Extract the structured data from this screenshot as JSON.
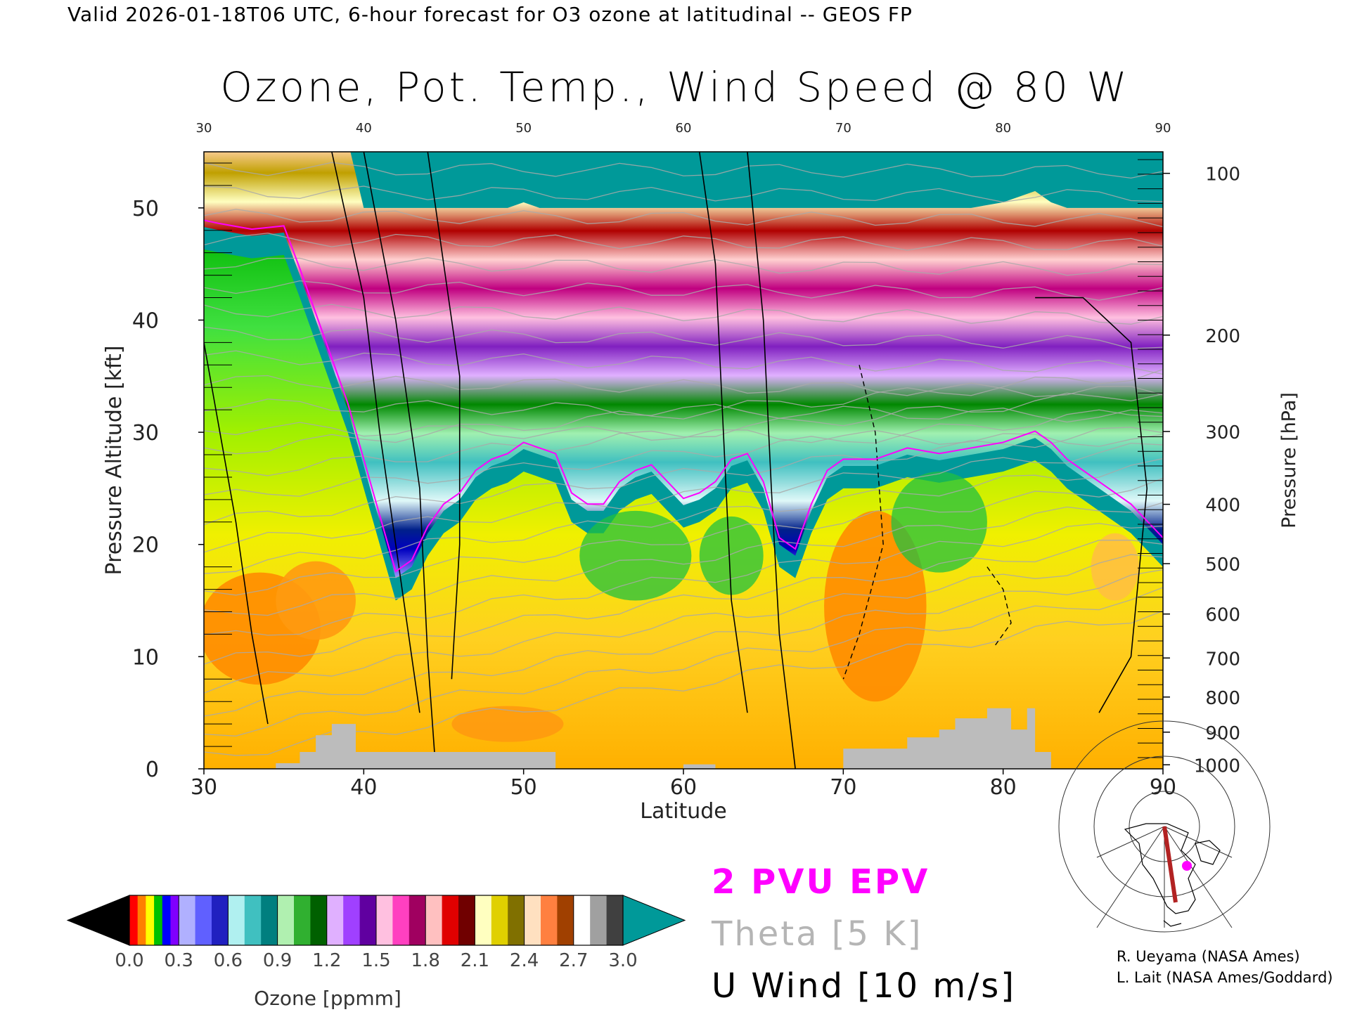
{
  "header": {
    "valid_line": "Valid 2026-01-18T06 UTC, 6-hour forecast for O3 ozone at latitudinal -- GEOS FP",
    "title": "Ozone, Pot. Temp., Wind Speed @ 80 W"
  },
  "chart_data": {
    "type": "heatmap",
    "title": "Ozone, Pot. Temp., Wind Speed @ 80 W",
    "xlabel": "Latitude",
    "ylabel": "Pressure Altitude [kft]",
    "y2label": "Pressure [hPa]",
    "xlim": [
      30,
      90
    ],
    "ylim": [
      0,
      55
    ],
    "x_ticks": [
      30,
      40,
      50,
      60,
      70,
      80,
      90
    ],
    "x_tick_labels": [
      "30",
      "40",
      "50",
      "60",
      "70",
      "80",
      "90"
    ],
    "y_ticks": [
      0,
      10,
      20,
      30,
      40,
      50
    ],
    "y_tick_labels": [
      "0",
      "10",
      "20",
      "30",
      "40",
      "50"
    ],
    "pressure_ticks": [
      {
        "hpa": "100",
        "kft": 53.08
      },
      {
        "hpa": "200",
        "kft": 38.66
      },
      {
        "hpa": "300",
        "kft": 30.07
      },
      {
        "hpa": "400",
        "kft": 23.58
      },
      {
        "hpa": "500",
        "kft": 18.29
      },
      {
        "hpa": "600",
        "kft": 13.8
      },
      {
        "hpa": "700",
        "kft": 9.88
      },
      {
        "hpa": "800",
        "kft": 6.4
      },
      {
        "hpa": "900",
        "kft": 3.27
      },
      {
        "hpa": "1000",
        "kft": 0.36
      }
    ],
    "colorbar": {
      "label": "Ozone [ppmm]",
      "min": 0.0,
      "max": 3.0,
      "tick_labels": [
        "0.0",
        "0.3",
        "0.6",
        "0.9",
        "1.2",
        "1.5",
        "1.8",
        "2.1",
        "2.4",
        "2.7",
        "3.0"
      ],
      "under_color": "#000000",
      "over_color": "#009999",
      "bands": [
        [
          "#ff0000",
          "#ff7f00",
          "#ffff00",
          "#00c000",
          "#0000ff",
          "#8000ff"
        ],
        [
          "#b0b0ff",
          "#6060ff",
          "#2020c0"
        ],
        [
          "#b0f0f0",
          "#40c0c0",
          "#007f7f"
        ],
        [
          "#b0f0b0",
          "#30b030",
          "#006000"
        ],
        [
          "#e0b0ff",
          "#a040ff",
          "#6000a0"
        ],
        [
          "#ffc0e0",
          "#ff40c0",
          "#a00060"
        ],
        [
          "#ffc0c0",
          "#e00000",
          "#700000"
        ],
        [
          "#ffffc0",
          "#e0d000",
          "#807000"
        ],
        [
          "#ffe0c0",
          "#ff8040",
          "#a04000"
        ],
        [
          "#ffffff",
          "#a0a0a0",
          "#404040"
        ]
      ]
    },
    "tropopause_top_kft": [
      [
        30,
        48.3
      ],
      [
        31,
        48.0
      ],
      [
        33,
        47.5
      ],
      [
        35,
        47.8
      ],
      [
        36,
        44.0
      ],
      [
        37,
        40.0
      ],
      [
        38,
        36.0
      ],
      [
        39,
        32.0
      ],
      [
        40,
        27.0
      ],
      [
        41,
        22.0
      ],
      [
        42,
        17.0
      ],
      [
        43,
        18.0
      ],
      [
        44,
        21.0
      ],
      [
        45,
        23.0
      ],
      [
        46,
        24.0
      ],
      [
        47,
        26.0
      ],
      [
        48,
        27.0
      ],
      [
        49,
        27.5
      ],
      [
        50,
        28.5
      ],
      [
        51,
        28.0
      ],
      [
        52,
        27.5
      ],
      [
        53,
        24.0
      ],
      [
        54,
        23.0
      ],
      [
        55,
        23.0
      ],
      [
        56,
        25.0
      ],
      [
        57,
        26.0
      ],
      [
        58,
        26.5
      ],
      [
        59,
        25.0
      ],
      [
        60,
        23.5
      ],
      [
        61,
        24.0
      ],
      [
        62,
        25.0
      ],
      [
        63,
        27.0
      ],
      [
        64,
        27.5
      ],
      [
        65,
        25.0
      ],
      [
        66,
        20.0
      ],
      [
        67,
        19.0
      ],
      [
        68,
        23.0
      ],
      [
        69,
        26.0
      ],
      [
        70,
        27.0
      ],
      [
        72,
        27.0
      ],
      [
        74,
        28.0
      ],
      [
        76,
        27.5
      ],
      [
        78,
        28.0
      ],
      [
        80,
        28.5
      ],
      [
        81,
        29.0
      ],
      [
        82,
        29.5
      ],
      [
        83,
        28.5
      ],
      [
        84,
        27.0
      ],
      [
        86,
        25.0
      ],
      [
        88,
        23.0
      ],
      [
        90,
        20.0
      ]
    ],
    "warm_cores": [
      {
        "lat": 33.5,
        "kft": 12.5,
        "rx": 3.8,
        "ry": 5.0,
        "color": "#ff8c00"
      },
      {
        "lat": 37.0,
        "kft": 15.0,
        "rx": 2.5,
        "ry": 3.5,
        "color": "#ff9a10"
      },
      {
        "lat": 72.0,
        "kft": 14.5,
        "rx": 3.2,
        "ry": 8.5,
        "color": "#ff8c00"
      },
      {
        "lat": 49.0,
        "kft": 4.0,
        "rx": 3.5,
        "ry": 1.6,
        "color": "#ff9a10"
      },
      {
        "lat": 87.0,
        "kft": 18.0,
        "rx": 1.5,
        "ry": 3.0,
        "color": "#ffc040"
      }
    ],
    "green_pockets": [
      {
        "lat": 57.0,
        "kft": 19.0,
        "rx": 3.5,
        "ry": 4.0
      },
      {
        "lat": 76.0,
        "kft": 22.0,
        "rx": 3.0,
        "ry": 4.5
      },
      {
        "lat": 63.0,
        "kft": 19.0,
        "rx": 2.0,
        "ry": 3.5
      }
    ],
    "terrain_kft": [
      [
        34.5,
        0
      ],
      [
        34.5,
        0.5
      ],
      [
        36.0,
        0.5
      ],
      [
        36.0,
        1.5
      ],
      [
        37.0,
        1.5
      ],
      [
        37.0,
        3.0
      ],
      [
        38.0,
        3.0
      ],
      [
        38.0,
        4.0
      ],
      [
        39.5,
        4.0
      ],
      [
        39.5,
        1.5
      ],
      [
        52.0,
        1.5
      ],
      [
        52.0,
        0
      ],
      [
        60.0,
        0
      ],
      [
        60.0,
        0.4
      ],
      [
        62.0,
        0.4
      ],
      [
        62.0,
        0
      ],
      [
        70.0,
        0
      ],
      [
        70.0,
        1.8
      ],
      [
        74.0,
        1.8
      ],
      [
        74.0,
        2.8
      ],
      [
        76.0,
        2.8
      ],
      [
        76.0,
        3.5
      ],
      [
        77.0,
        3.5
      ],
      [
        77.0,
        4.5
      ],
      [
        79.0,
        4.5
      ],
      [
        79.0,
        5.4
      ],
      [
        80.5,
        5.4
      ],
      [
        80.5,
        3.5
      ],
      [
        81.5,
        3.5
      ],
      [
        81.5,
        5.4
      ],
      [
        82.0,
        5.4
      ],
      [
        82.0,
        1.5
      ],
      [
        83.0,
        1.5
      ],
      [
        83.0,
        0
      ]
    ],
    "legend": {
      "epv": "2 PVU EPV",
      "theta": "Theta [5 K]",
      "uwind": "U Wind [10 m/s]",
      "epv_color": "#ff00ff",
      "theta_color": "#b5b5b5",
      "uwind_color": "#000000"
    }
  },
  "credits": {
    "line1": "R. Ueyama (NASA Ames)",
    "line2": "L. Lait (NASA Ames/Goddard)"
  },
  "inset_map": {
    "marker_color": "#ff00ff",
    "track_color": "#b22222"
  }
}
